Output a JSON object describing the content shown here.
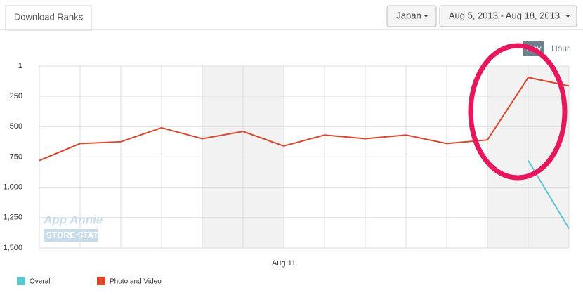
{
  "ui": {
    "tab": "Download Ranks",
    "country": "Japan",
    "date_range": "Aug 5, 2013 - Aug 18, 2013",
    "granularity": [
      "Day",
      "Hour"
    ],
    "watermark": [
      "App Annie",
      "STORE STATS"
    ]
  },
  "chart_data": {
    "type": "line",
    "categories": [
      null,
      null,
      null,
      null,
      null,
      null,
      "Aug 11",
      null,
      null,
      null,
      null,
      null,
      null,
      null
    ],
    "series": [
      {
        "name": "Overall",
        "color": "#5bc6d0",
        "values": [
          null,
          null,
          null,
          null,
          null,
          null,
          null,
          null,
          null,
          null,
          null,
          null,
          780,
          1340
        ]
      },
      {
        "name": "Photo and Video",
        "color": "#d9472f",
        "values": [
          780,
          640,
          625,
          510,
          600,
          540,
          660,
          570,
          600,
          570,
          640,
          610,
          95,
          165
        ]
      }
    ],
    "ylim": [
      1,
      1500
    ],
    "inverted": true,
    "yticks": [
      1,
      250,
      500,
      750,
      {
        "value": 1000,
        "label": "1,000"
      },
      {
        "value": 1250,
        "label": "1,250"
      },
      {
        "value": 1500,
        "label": "1,500"
      }
    ],
    "grid": true
  }
}
